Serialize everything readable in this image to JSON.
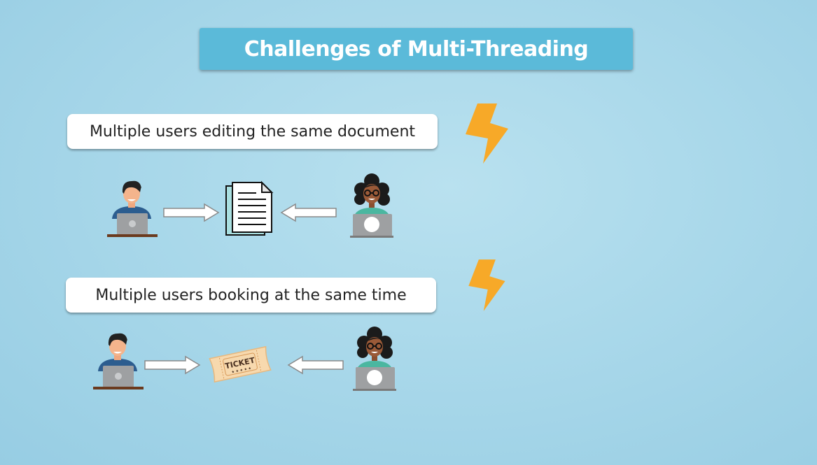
{
  "title": "Challenges of Multi-Threading",
  "scenarios": [
    {
      "label": "Multiple users editing the same document",
      "resource": "document"
    },
    {
      "label": "Multiple users booking at the same time",
      "resource": "ticket",
      "ticket_text": "TICKET",
      "ticket_stars": "★ ★ ★ ★ ★"
    }
  ],
  "icons": {
    "lightning": "lightning-bolt-icon",
    "user_male": "man-at-laptop-icon",
    "user_female": "woman-at-laptop-icon"
  },
  "colors": {
    "title_bg": "#5bbad9",
    "bolt": "#f7a928",
    "background": "#a9d8ea"
  }
}
